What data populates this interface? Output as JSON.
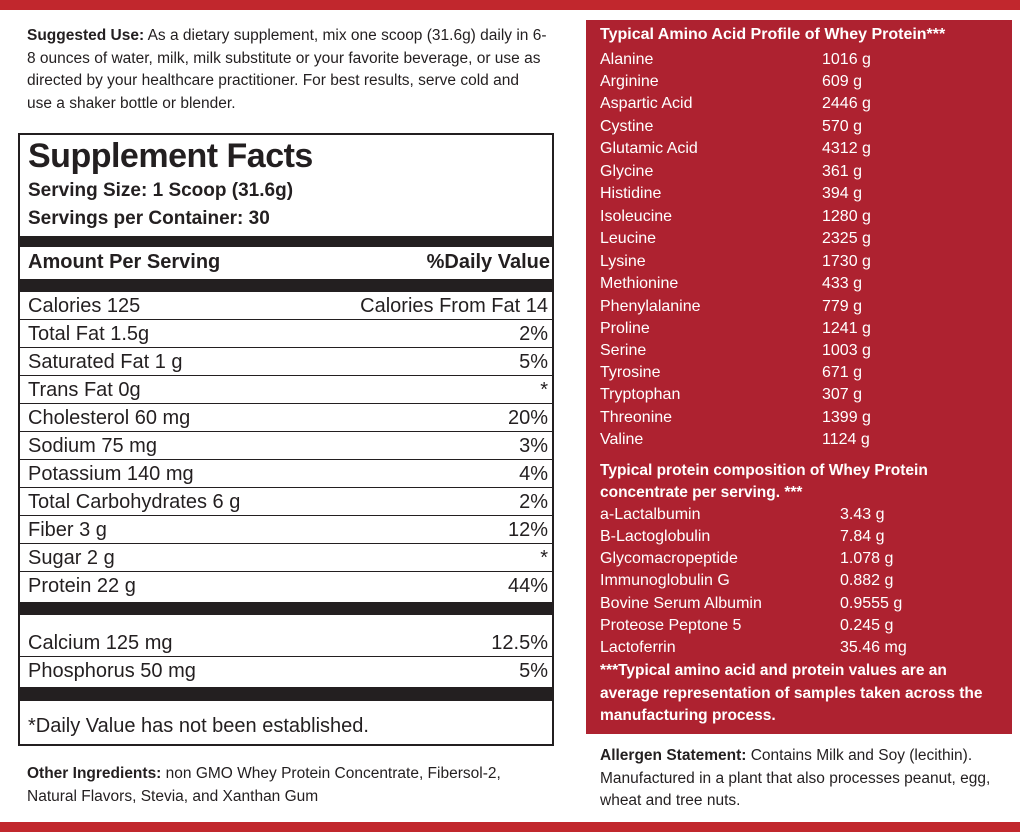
{
  "suggested_use": {
    "label": "Suggested Use:",
    "text": " As a dietary supplement, mix one scoop (31.6g) daily in 6-8 ounces of water, milk, milk substitute or your favorite beverage, or use as directed by your healthcare practitioner. For best results, serve cold and use a shaker bottle or blender."
  },
  "supplement_facts": {
    "title": "Supplement Facts",
    "serving_size": "Serving Size: 1 Scoop (31.6g)",
    "servings_per_container": "Servings per Container: 30",
    "amount_header": "Amount Per Serving",
    "dv_header": "%Daily Value",
    "rows": [
      {
        "label": "Calories 125",
        "value": "Calories From Fat 14"
      },
      {
        "label": "Total Fat 1.5g",
        "value": "2%"
      },
      {
        "label": "Saturated Fat 1 g",
        "value": "5%"
      },
      {
        "label": "Trans Fat  0g",
        "value": "*"
      },
      {
        "label": "Cholesterol 60 mg",
        "value": "20%"
      },
      {
        "label": "Sodium 75 mg",
        "value": "3%"
      },
      {
        "label": "Potassium 140 mg",
        "value": "4%"
      },
      {
        "label": "Total Carbohydrates 6 g",
        "value": "2%"
      },
      {
        "label": "Fiber 3 g",
        "value": "12%"
      },
      {
        "label": "Sugar 2 g",
        "value": "*"
      },
      {
        "label": "Protein 22 g",
        "value": "44%"
      }
    ],
    "minerals": [
      {
        "label": "Calcium 125 mg",
        "value": "12.5%"
      },
      {
        "label": "Phosphorus 50 mg",
        "value": "5%"
      }
    ],
    "footnote": "*Daily Value has not been established."
  },
  "other_ingredients": {
    "label": "Other Ingredients:",
    "text": " non GMO Whey Protein Concentrate, Fibersol-2, Natural Flavors, Stevia, and Xanthan Gum"
  },
  "amino_profile": {
    "title": "Typical Amino Acid Profile of Whey Protein***",
    "rows": [
      {
        "name": "Alanine",
        "value": "1016 g"
      },
      {
        "name": "Arginine",
        "value": "609 g"
      },
      {
        "name": "Aspartic Acid",
        "value": "2446 g"
      },
      {
        "name": "Cystine",
        "value": "570 g"
      },
      {
        "name": "Glutamic Acid",
        "value": "4312 g"
      },
      {
        "name": "Glycine",
        "value": "361 g"
      },
      {
        "name": "Histidine",
        "value": "394 g"
      },
      {
        "name": "Isoleucine",
        "value": "1280 g"
      },
      {
        "name": "Leucine",
        "value": "2325 g"
      },
      {
        "name": "Lysine",
        "value": "1730 g"
      },
      {
        "name": "Methionine",
        "value": "433 g"
      },
      {
        "name": "Phenylalanine",
        "value": "779 g"
      },
      {
        "name": "Proline",
        "value": "1241 g"
      },
      {
        "name": "Serine",
        "value": "1003 g"
      },
      {
        "name": "Tyrosine",
        "value": "671 g"
      },
      {
        "name": "Tryptophan",
        "value": "307 g"
      },
      {
        "name": "Threonine",
        "value": "1399 g"
      },
      {
        "name": "Valine",
        "value": "1124 g"
      }
    ]
  },
  "protein_composition": {
    "title": "Typical protein composition of Whey Protein concentrate per serving. ***",
    "rows": [
      {
        "name": "a-Lactalbumin",
        "value": "3.43 g"
      },
      {
        "name": "B-Lactoglobulin",
        "value": "7.84 g"
      },
      {
        "name": "Glycomacropeptide",
        "value": "1.078 g"
      },
      {
        "name": "Immunoglobulin G",
        "value": "0.882 g"
      },
      {
        "name": "Bovine Serum Albumin",
        "value": "0.9555 g"
      },
      {
        "name": "Proteose Peptone 5",
        "value": "0.245 g"
      },
      {
        "name": "Lactoferrin",
        "value": "35.46 mg"
      }
    ],
    "note": "***Typical amino acid and protein values are an average representation of samples taken across the manufacturing process."
  },
  "allergen": {
    "label": "Allergen Statement:",
    "text": " Contains Milk and Soy (lecithin). Manufactured in a plant that also processes peanut, egg, wheat and tree nuts."
  },
  "colors": {
    "accent_red": "#c1272d",
    "panel_red": "#ae2230",
    "text_dark": "#231f20"
  }
}
